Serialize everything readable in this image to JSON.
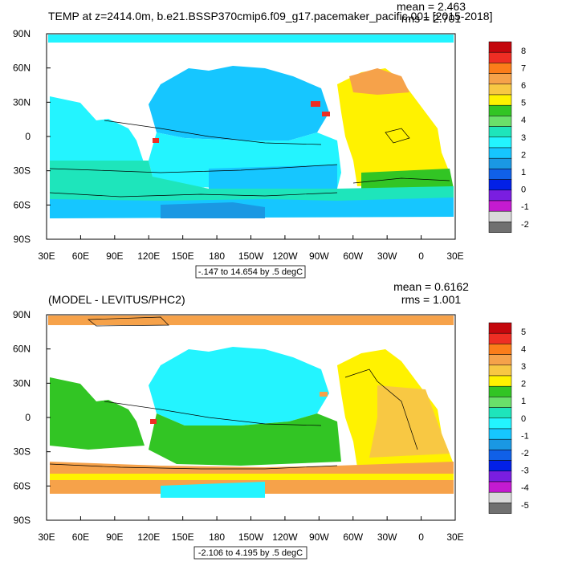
{
  "chart_data": [
    {
      "type": "heatmap",
      "title": "TEMP at z=2414.0m, b.e21.BSSP370cmip6.f09_g17.pacemaker_pacific.001 [2015-2018]",
      "mean_text": "mean = 2.463",
      "rms_text": "rms = 2.701",
      "range_text": "-.147 to 14.654 by .5 degC",
      "x_ticks": [
        "30E",
        "60E",
        "90E",
        "120E",
        "150E",
        "180",
        "150W",
        "120W",
        "90W",
        "60W",
        "30W",
        "0",
        "30E"
      ],
      "y_ticks": [
        "90N",
        "60N",
        "30N",
        "0",
        "30S",
        "60S",
        "90S"
      ],
      "xlim": [
        30,
        390
      ],
      "ylim": [
        -90,
        90
      ],
      "colorbar": {
        "labels": [
          "8",
          "7",
          "6",
          "5",
          "4",
          "3",
          "2",
          "1",
          "0",
          "-1",
          "-2"
        ],
        "colors": [
          "#c4070d",
          "#ee2e24",
          "#fb7d1a",
          "#f6a24a",
          "#f8c843",
          "#fff200",
          "#32c524",
          "#6ae06a",
          "#1ee5bb",
          "#23f4ff",
          "#16c6ff",
          "#1a98e3",
          "#1060e8",
          "#0220e7",
          "#7a1ee0",
          "#c41bd0",
          "#d9d9d9",
          "#707070"
        ]
      },
      "regions": [
        {
          "name": "north-atlantic",
          "color": "#fff200"
        },
        {
          "name": "north-pacific",
          "color": "#16c6ff"
        },
        {
          "name": "indian-ocean",
          "color": "#23f4ff"
        },
        {
          "name": "southern-ocean",
          "color": "#1ee5bb"
        }
      ]
    },
    {
      "type": "heatmap",
      "title": "(MODEL - LEVITUS/PHC2)",
      "mean_text": "mean = 0.6162",
      "rms_text": "rms = 1.001",
      "range_text": "-2.106 to 4.195 by .5 degC",
      "x_ticks": [
        "30E",
        "60E",
        "90E",
        "120E",
        "150E",
        "180",
        "150W",
        "120W",
        "90W",
        "60W",
        "30W",
        "0",
        "30E"
      ],
      "y_ticks": [
        "90N",
        "60N",
        "30N",
        "0",
        "30S",
        "60S",
        "90S"
      ],
      "xlim": [
        30,
        390
      ],
      "ylim": [
        -90,
        90
      ],
      "colorbar": {
        "labels": [
          "5",
          "4",
          "3",
          "2",
          "1",
          "0",
          "-1",
          "-2",
          "-3",
          "-4",
          "-5"
        ],
        "colors": [
          "#c4070d",
          "#ee2e24",
          "#fb7d1a",
          "#f6a24a",
          "#f8c843",
          "#fff200",
          "#32c524",
          "#6ae06a",
          "#1ee5bb",
          "#23f4ff",
          "#16c6ff",
          "#1a98e3",
          "#1060e8",
          "#0220e7",
          "#7a1ee0",
          "#c41bd0",
          "#d9d9d9",
          "#707070"
        ]
      },
      "regions": [
        {
          "name": "atlantic",
          "color": "#fff200"
        },
        {
          "name": "north-pacific",
          "color": "#23f4ff"
        },
        {
          "name": "south-pacific",
          "color": "#32c524"
        },
        {
          "name": "southern-ocean",
          "color": "#f6a24a"
        }
      ]
    }
  ]
}
